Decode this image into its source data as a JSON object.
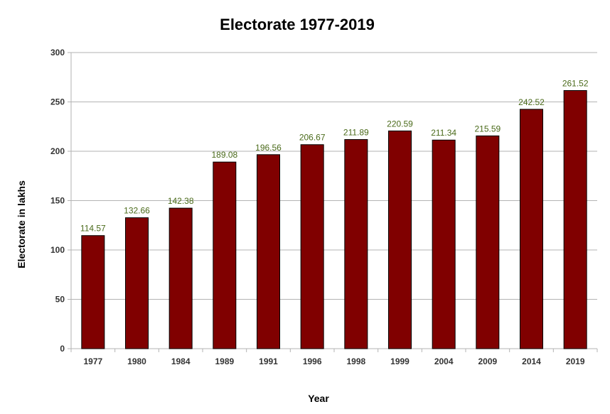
{
  "chart_data": {
    "type": "bar",
    "title": "Electorate 1977-2019",
    "xlabel": "Year",
    "ylabel": "Electorate in lakhs",
    "categories": [
      "1977",
      "1980",
      "1984",
      "1989",
      "1991",
      "1996",
      "1998",
      "1999",
      "2004",
      "2009",
      "2014",
      "2019"
    ],
    "values": [
      114.57,
      132.66,
      142.38,
      189.08,
      196.56,
      206.67,
      211.89,
      220.59,
      211.34,
      215.59,
      242.52,
      261.52
    ],
    "ylim": [
      0,
      300
    ],
    "yticks": [
      0,
      50,
      100,
      150,
      200,
      250,
      300
    ],
    "grid": true,
    "legend": "none",
    "bar_color": "#800000",
    "label_color": "#4a6a1a"
  }
}
